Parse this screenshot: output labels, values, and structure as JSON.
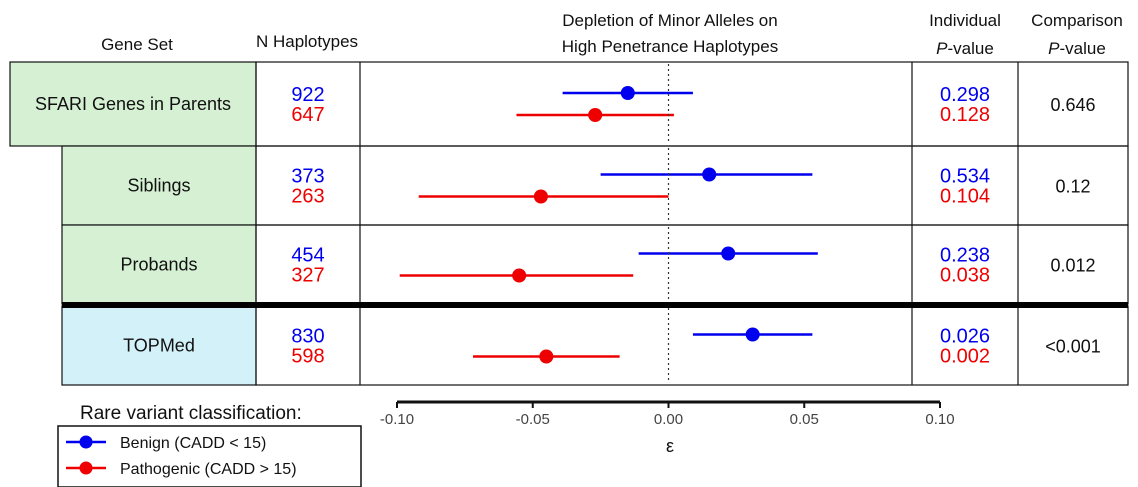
{
  "chart_data": {
    "type": "forest",
    "title_lines": [
      "Depletion of Minor Alleles on",
      "High Penetrance Haplotypes"
    ],
    "headers": {
      "gene_set": "Gene Set",
      "n_haplotypes": "N Haplotypes",
      "individual_line1": "Individual",
      "individual_line2": "P-value",
      "comparison_line1": "Comparison",
      "comparison_line2": "P-value"
    },
    "xlabel": "ε",
    "xlim": [
      -0.1,
      0.1
    ],
    "xticks": [
      -0.1,
      -0.05,
      0.0,
      0.05,
      0.1
    ],
    "xtick_labels": [
      "-0.10",
      "-0.05",
      "0.00",
      "0.05",
      "0.10"
    ],
    "reference_line": 0,
    "colors": {
      "benign": "#0000ee",
      "pathogenic": "#ee0000",
      "green_fill": "#d5f0d3",
      "blue_fill": "#d3f1f8"
    },
    "series": [
      {
        "name": "Benign (CADD < 15)",
        "color": "#0000ee"
      },
      {
        "name": "Pathogenic (CADD > 15)",
        "color": "#ee0000"
      }
    ],
    "rows": [
      {
        "label": "SFARI Genes in Parents",
        "fill": "green",
        "n_benign": "922",
        "n_pathogenic": "647",
        "p_benign": "0.298",
        "p_pathogenic": "0.128",
        "p_comparison": "0.646",
        "benign": {
          "est": -0.015,
          "lo": -0.039,
          "hi": 0.009
        },
        "pathogenic": {
          "est": -0.027,
          "lo": -0.056,
          "hi": 0.002
        }
      },
      {
        "label": "Siblings",
        "fill": "green",
        "n_benign": "373",
        "n_pathogenic": "263",
        "p_benign": "0.534",
        "p_pathogenic": "0.104",
        "p_comparison": "0.12",
        "benign": {
          "est": 0.015,
          "lo": -0.025,
          "hi": 0.053
        },
        "pathogenic": {
          "est": -0.047,
          "lo": -0.092,
          "hi": 0.0
        }
      },
      {
        "label": "Probands",
        "fill": "green",
        "n_benign": "454",
        "n_pathogenic": "327",
        "p_benign": "0.238",
        "p_pathogenic": "0.038",
        "p_comparison": "0.012",
        "benign": {
          "est": 0.022,
          "lo": -0.011,
          "hi": 0.055
        },
        "pathogenic": {
          "est": -0.055,
          "lo": -0.099,
          "hi": -0.013
        }
      },
      {
        "label": "TOPMed",
        "fill": "blue",
        "n_benign": "830",
        "n_pathogenic": "598",
        "p_benign": "0.026",
        "p_pathogenic": "0.002",
        "p_comparison": "<0.001",
        "benign": {
          "est": 0.031,
          "lo": 0.009,
          "hi": 0.053
        },
        "pathogenic": {
          "est": -0.045,
          "lo": -0.072,
          "hi": -0.018
        }
      }
    ],
    "legend": {
      "title": "Rare variant classification:",
      "placement": "bottom-left",
      "entries": [
        "Benign (CADD < 15)",
        "Pathogenic (CADD > 15)"
      ]
    }
  }
}
